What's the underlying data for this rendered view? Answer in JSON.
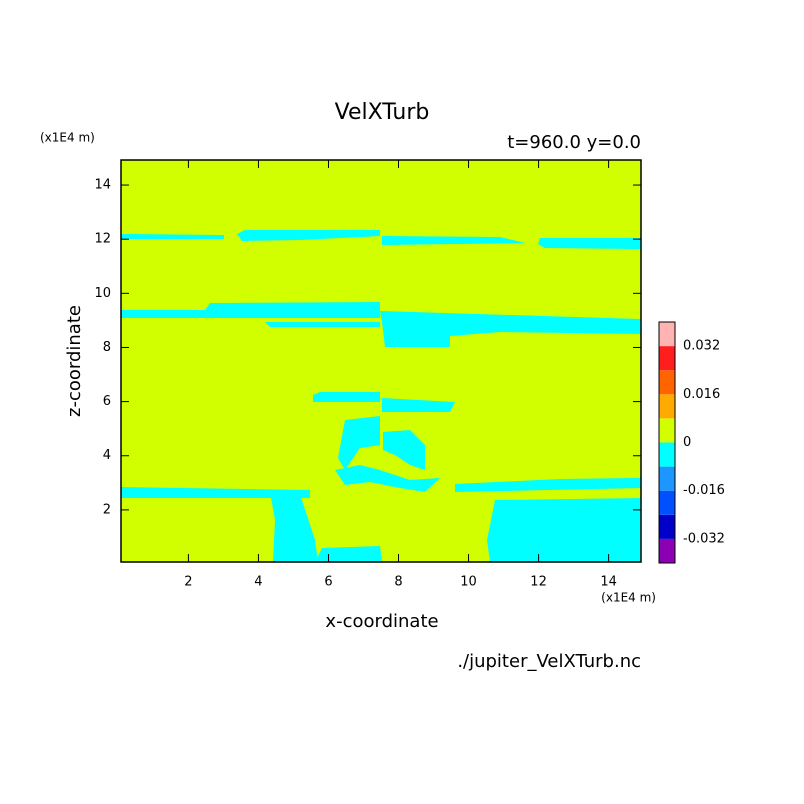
{
  "chart_data": {
    "type": "contour",
    "title": "VelXTurb",
    "subtitle": "t=960.0 y=0.0",
    "x_label": "x-coordinate",
    "y_label": "z-coordinate",
    "x_unit": "(x1E4 m)",
    "y_unit": "(x1E4 m)",
    "source": "./jupiter_VelXTurb.nc",
    "xlim": [
      0.075,
      14.925
    ],
    "ylim": [
      0.075,
      14.925
    ],
    "xticks": [
      2,
      4,
      6,
      8,
      10,
      12,
      14
    ],
    "yticks": [
      2,
      4,
      6,
      8,
      10,
      12,
      14
    ],
    "levels": [
      -0.04,
      -0.032,
      -0.024,
      -0.016,
      -0.008,
      0,
      0.008,
      0.016,
      0.024,
      0.032,
      0.04
    ],
    "colors": [
      "#8b00b4",
      "#0000c8",
      "#0050ff",
      "#1e96ff",
      "#00ffff",
      "#d2ff00",
      "#ffaa00",
      "#ff6400",
      "#ff1e1e",
      "#ffb4b4"
    ],
    "colorbar_ticks": [
      -0.032,
      -0.016,
      0,
      0.016,
      0.032
    ]
  }
}
